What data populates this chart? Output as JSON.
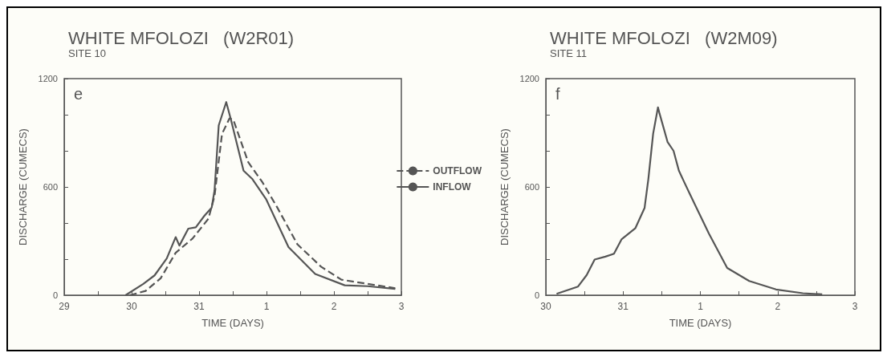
{
  "chart_data": [
    {
      "type": "line",
      "title": "WHITE MFOLOZI   (W2R01)",
      "subtitle": "SITE 10",
      "xlabel": "TIME (DAYS)",
      "ylabel": "DISCHARGE (CUMECS)",
      "annotations": [
        "e"
      ],
      "legend": "right",
      "xlim": [
        "--01-29",
        "--02-03"
      ],
      "xticks": [
        {
          "value": "--01-29",
          "label": "29"
        },
        {
          "value": "--01-29T12:00",
          "label": null
        },
        {
          "value": "--01-30",
          "label": "30"
        },
        {
          "value": "--01-30T12:00",
          "label": null
        },
        {
          "value": "--01-31",
          "label": "31"
        },
        {
          "value": "--01-31T12:00",
          "label": null
        },
        {
          "value": "--02-01",
          "label": "1"
        },
        {
          "value": "--02-01T12:00",
          "label": null
        },
        {
          "value": "--02-02",
          "label": "2"
        },
        {
          "value": "--02-02T12:00",
          "label": null
        },
        {
          "value": "--02-03",
          "label": "3"
        }
      ],
      "ylim": [
        0,
        1200
      ],
      "yticks": [
        0,
        {
          "value": 200,
          "label": null
        },
        {
          "value": 400,
          "label": null
        },
        600,
        {
          "value": 800,
          "label": null
        },
        {
          "value": 1000,
          "label": null
        },
        1200
      ],
      "series": [
        {
          "name": "OUTFLOW",
          "color": "#555555",
          "line_style": "dashed",
          "x": [
            "--01-29T23:20",
            "--01-30T05:00",
            "--01-30T10:20",
            "--01-30T15:40",
            "--01-30T21:40",
            "--01-31T03:20",
            "--01-31T05:30",
            "--01-31T08:10",
            "--01-31T10:50",
            "--01-31T12:10",
            "--01-31T17:30",
            "--01-31T22:30",
            "--02-01T03:50",
            "--02-01T11:00",
            "--02-01T19:30",
            "--02-02T02:40",
            "--02-02T12:00",
            "--02-02T21:50"
          ],
          "values": [
            0,
            24,
            94,
            235,
            314,
            424,
            549,
            894,
            980,
            973,
            737,
            627,
            486,
            282,
            157,
            86,
            63,
            39
          ]
        },
        {
          "name": "INFLOW",
          "color": "#555555",
          "line_style": "solid",
          "x": [
            "--01-29T21:50",
            "--01-30T04:10",
            "--01-30T08:10",
            "--01-30T12:30",
            "--01-30T15:40",
            "--01-30T17:00",
            "--01-30T20:10",
            "--01-30T22:50",
            "--01-31T01:50",
            "--01-31T04:30",
            "--01-31T05:30",
            "--01-31T07:00",
            "--01-31T09:40",
            "--01-31T11:20",
            "--01-31T15:50",
            "--01-31T19:00",
            "--01-31T23:50",
            "--02-01T07:50",
            "--02-01T17:20",
            "--02-02T03:50",
            "--02-02T12:00",
            "--02-02T21:50"
          ],
          "values": [
            0,
            63,
            110,
            204,
            322,
            275,
            369,
            376,
            439,
            486,
            580,
            941,
            1070,
            973,
            690,
            643,
            533,
            267,
            118,
            55,
            50,
            35
          ]
        }
      ]
    },
    {
      "type": "line",
      "title": "WHITE MFOLOZI   (W2M09)",
      "subtitle": "SITE 11",
      "xlabel": "TIME (DAYS)",
      "ylabel": "DISCHARGE (CUMECS)",
      "annotations": [
        "f"
      ],
      "xlim": [
        "--01-30",
        "--02-03"
      ],
      "xticks": [
        {
          "value": "--01-30",
          "label": "30"
        },
        {
          "value": "--01-30T12:00",
          "label": null
        },
        {
          "value": "--01-31",
          "label": "31"
        },
        {
          "value": "--01-31T12:00",
          "label": null
        },
        {
          "value": "--02-01",
          "label": "1"
        },
        {
          "value": "--02-01T12:00",
          "label": null
        },
        {
          "value": "--02-02",
          "label": "2"
        },
        {
          "value": "--02-02T12:00",
          "label": null
        },
        {
          "value": "--02-03",
          "label": "3"
        }
      ],
      "ylim": [
        0,
        1200
      ],
      "yticks": [
        0,
        {
          "value": 200,
          "label": null
        },
        {
          "value": 400,
          "label": null
        },
        600,
        {
          "value": 800,
          "label": null
        },
        {
          "value": 1000,
          "label": null
        },
        1200
      ],
      "series": [
        {
          "color": "#555555",
          "line_style": "solid",
          "x": [
            "--01-30T03:20",
            "--01-30T10:00",
            "--01-30T12:40",
            "--01-30T15:10",
            "--01-30T18:30",
            "--01-30T21:10",
            "--01-30T23:30",
            "--01-31T03:50",
            "--01-31T06:40",
            "--01-31T07:50",
            "--01-31T09:20",
            "--01-31T10:50",
            "--01-31T11:20",
            "--01-31T13:50",
            "--01-31T15:40",
            "--01-31T17:20",
            "--01-31T19:00",
            "--01-31T20:40",
            "--02-01T02:40",
            "--02-01T08:20",
            "--02-01T15:10",
            "--02-01T23:30",
            "--02-02T07:50",
            "--02-02T13:50"
          ],
          "values": [
            8,
            48,
            111,
            198,
            214,
            230,
            309,
            372,
            483,
            642,
            895,
            1041,
            1006,
            848,
            800,
            690,
            626,
            563,
            341,
            151,
            79,
            32,
            11,
            5
          ]
        }
      ]
    }
  ]
}
